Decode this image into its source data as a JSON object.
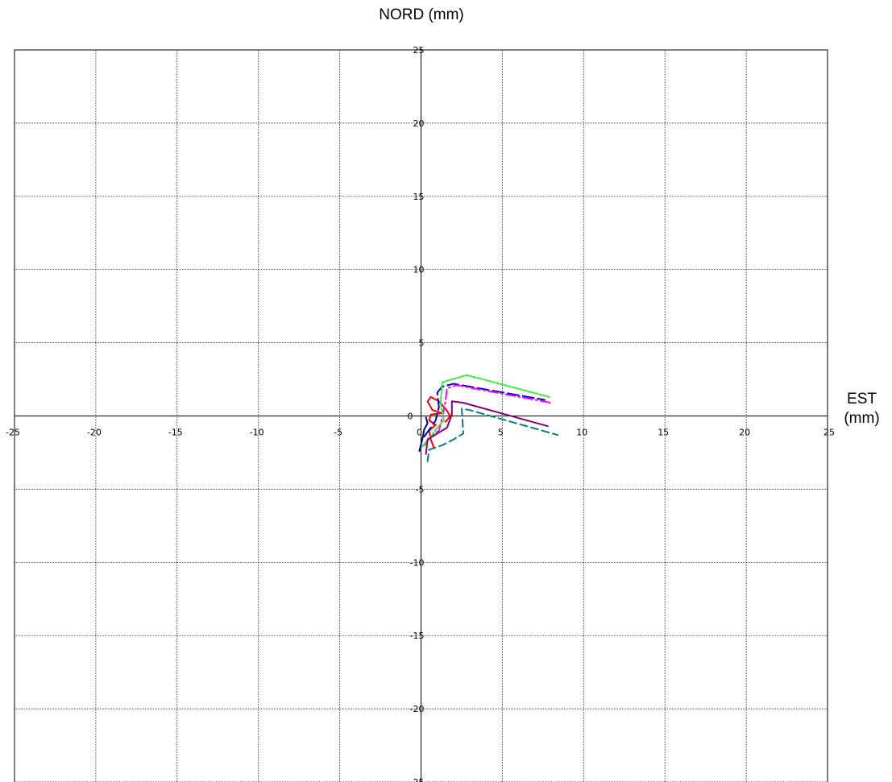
{
  "chart_data": {
    "type": "line",
    "title": "",
    "ylabel": "NORD (mm)",
    "xlabel_line1": "EST",
    "xlabel_line2": "(mm)",
    "xlim": [
      -25,
      25
    ],
    "ylim": [
      -25,
      25
    ],
    "xticks": [
      -25,
      -20,
      -15,
      -10,
      -5,
      0,
      5,
      10,
      15,
      20,
      25
    ],
    "yticks": [
      -25,
      -20,
      -15,
      -10,
      -5,
      0,
      5,
      10,
      15,
      20,
      25
    ],
    "grid": true,
    "series": [
      {
        "color": "#ff0000",
        "dash": "solid",
        "points": [
          [
            0.8,
            -2.2
          ],
          [
            0.6,
            -1.6
          ],
          [
            0.5,
            -1.0
          ],
          [
            0.9,
            -0.6
          ],
          [
            0.5,
            -0.3
          ],
          [
            0.6,
            0.1
          ],
          [
            1.3,
            0.2
          ],
          [
            0.7,
            0.4
          ],
          [
            0.4,
            1.0
          ],
          [
            0.6,
            1.3
          ],
          [
            1.1,
            1.0
          ],
          [
            1.5,
            0.5
          ],
          [
            1.8,
            0.0
          ],
          [
            1.5,
            -0.4
          ]
        ]
      },
      {
        "color": "#0000cc",
        "dash": "long-dash",
        "points": [
          [
            0.2,
            -1.4
          ],
          [
            0.6,
            -0.8
          ],
          [
            0.9,
            -0.3
          ],
          [
            1.1,
            0.6
          ],
          [
            1.0,
            1.6
          ],
          [
            1.3,
            2.0
          ],
          [
            2.0,
            2.2
          ],
          [
            7.6,
            1.1
          ]
        ]
      },
      {
        "color": "#ff00ff",
        "dash": "dash-dot",
        "points": [
          [
            0.2,
            -2.0
          ],
          [
            0.6,
            -1.4
          ],
          [
            1.1,
            -1.0
          ],
          [
            1.3,
            -0.1
          ],
          [
            1.5,
            1.0
          ],
          [
            1.6,
            1.9
          ],
          [
            2.2,
            2.1
          ],
          [
            8.0,
            0.9
          ]
        ]
      },
      {
        "color": "#33ee33",
        "dash": "dot",
        "points": [
          [
            -0.1,
            -2.3
          ],
          [
            0.6,
            -1.4
          ],
          [
            1.0,
            -0.8
          ],
          [
            1.4,
            -0.3
          ],
          [
            1.2,
            0.9
          ],
          [
            1.3,
            2.3
          ],
          [
            2.8,
            2.8
          ],
          [
            7.9,
            1.3
          ]
        ]
      },
      {
        "color": "#800080",
        "dash": "solid",
        "points": [
          [
            0.3,
            -2.6
          ],
          [
            0.4,
            -1.6
          ],
          [
            1.0,
            -1.2
          ],
          [
            1.6,
            -0.8
          ],
          [
            1.9,
            0.1
          ],
          [
            1.9,
            1.0
          ],
          [
            2.6,
            0.9
          ],
          [
            7.8,
            -0.7
          ]
        ]
      },
      {
        "color": "#008080",
        "dash": "dash",
        "points": [
          [
            0.4,
            -3.1
          ],
          [
            0.5,
            -2.3
          ],
          [
            1.3,
            -2.0
          ],
          [
            2.0,
            -1.6
          ],
          [
            2.6,
            -1.2
          ],
          [
            2.5,
            0.5
          ],
          [
            3.0,
            0.4
          ],
          [
            8.4,
            -1.3
          ]
        ]
      },
      {
        "color": "#000080",
        "dash": "solid",
        "points": [
          [
            -0.1,
            -2.4
          ],
          [
            0.1,
            -1.5
          ],
          [
            0.2,
            -0.9
          ],
          [
            0.4,
            -0.5
          ],
          [
            0.3,
            -0.1
          ]
        ]
      }
    ]
  }
}
